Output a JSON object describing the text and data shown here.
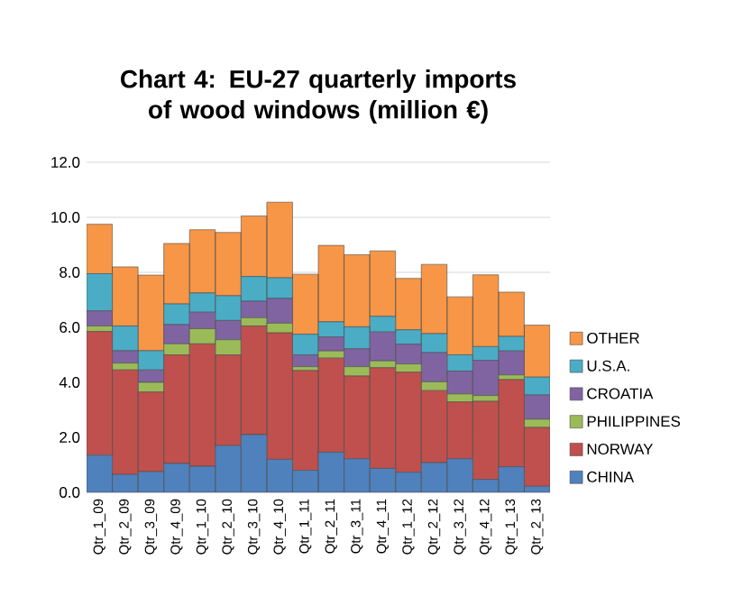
{
  "chart_data": {
    "type": "bar",
    "stacked": true,
    "title": "Chart 4: EU-27 quarterly imports of wood windows (million €)",
    "categories": [
      "Qtr_1_09",
      "Qtr_2_09",
      "Qtr_3_09",
      "Qtr_4_09",
      "Qtr_1_10",
      "Qtr_2_10",
      "Qtr_3_10",
      "Qtr_4_10",
      "Qtr_1_11",
      "Qtr_2_11",
      "Qtr_3_11",
      "Qtr_4_11",
      "Qtr_1_12",
      "Qtr_2_12",
      "Qtr_3_12",
      "Qtr_4_12",
      "Qtr_1_13",
      "Qtr_2_13"
    ],
    "series": [
      {
        "name": "CHINA",
        "color": "#4f81bd",
        "values": [
          1.35,
          0.65,
          0.75,
          1.05,
          0.95,
          1.7,
          2.1,
          1.2,
          0.8,
          1.46,
          1.22,
          0.87,
          0.73,
          1.08,
          1.22,
          0.47,
          0.93,
          0.22
        ]
      },
      {
        "name": "NORWAY",
        "color": "#c0504d",
        "values": [
          4.5,
          3.8,
          2.9,
          3.95,
          4.45,
          3.3,
          3.95,
          4.6,
          3.63,
          3.42,
          3.01,
          3.66,
          3.64,
          2.62,
          2.07,
          2.84,
          3.17,
          2.14
        ]
      },
      {
        "name": "PHILIPPINES",
        "color": "#9bbb59",
        "values": [
          0.2,
          0.25,
          0.35,
          0.4,
          0.55,
          0.55,
          0.3,
          0.35,
          0.14,
          0.26,
          0.34,
          0.25,
          0.3,
          0.32,
          0.29,
          0.21,
          0.17,
          0.3
        ]
      },
      {
        "name": "CROATIA",
        "color": "#8064a2",
        "values": [
          0.55,
          0.45,
          0.45,
          0.7,
          0.6,
          0.7,
          0.6,
          0.9,
          0.43,
          0.51,
          0.65,
          1.05,
          0.72,
          1.06,
          0.83,
          1.28,
          0.87,
          0.88
        ]
      },
      {
        "name": "U.S.A.",
        "color": "#4bacc6",
        "values": [
          1.35,
          0.9,
          0.7,
          0.75,
          0.7,
          0.9,
          0.9,
          0.75,
          0.75,
          0.55,
          0.8,
          0.57,
          0.52,
          0.69,
          0.59,
          0.5,
          0.53,
          0.65
        ]
      },
      {
        "name": "OTHER",
        "color": "#f79646",
        "values": [
          1.8,
          2.15,
          2.75,
          2.2,
          2.3,
          2.3,
          2.2,
          2.75,
          2.18,
          2.78,
          2.62,
          2.38,
          1.87,
          2.52,
          2.11,
          2.61,
          1.61,
          1.89
        ]
      }
    ],
    "ylim": [
      0,
      12
    ],
    "yticks": [
      {
        "value": 0,
        "label": "0.0"
      },
      {
        "value": 2,
        "label": "2.0"
      },
      {
        "value": 4,
        "label": "4.0"
      },
      {
        "value": 6,
        "label": "6.0"
      },
      {
        "value": 8,
        "label": "8.0"
      },
      {
        "value": 10,
        "label": "10.0"
      },
      {
        "value": 12,
        "label": "12.0"
      }
    ],
    "grid": "y",
    "legend": "right"
  }
}
